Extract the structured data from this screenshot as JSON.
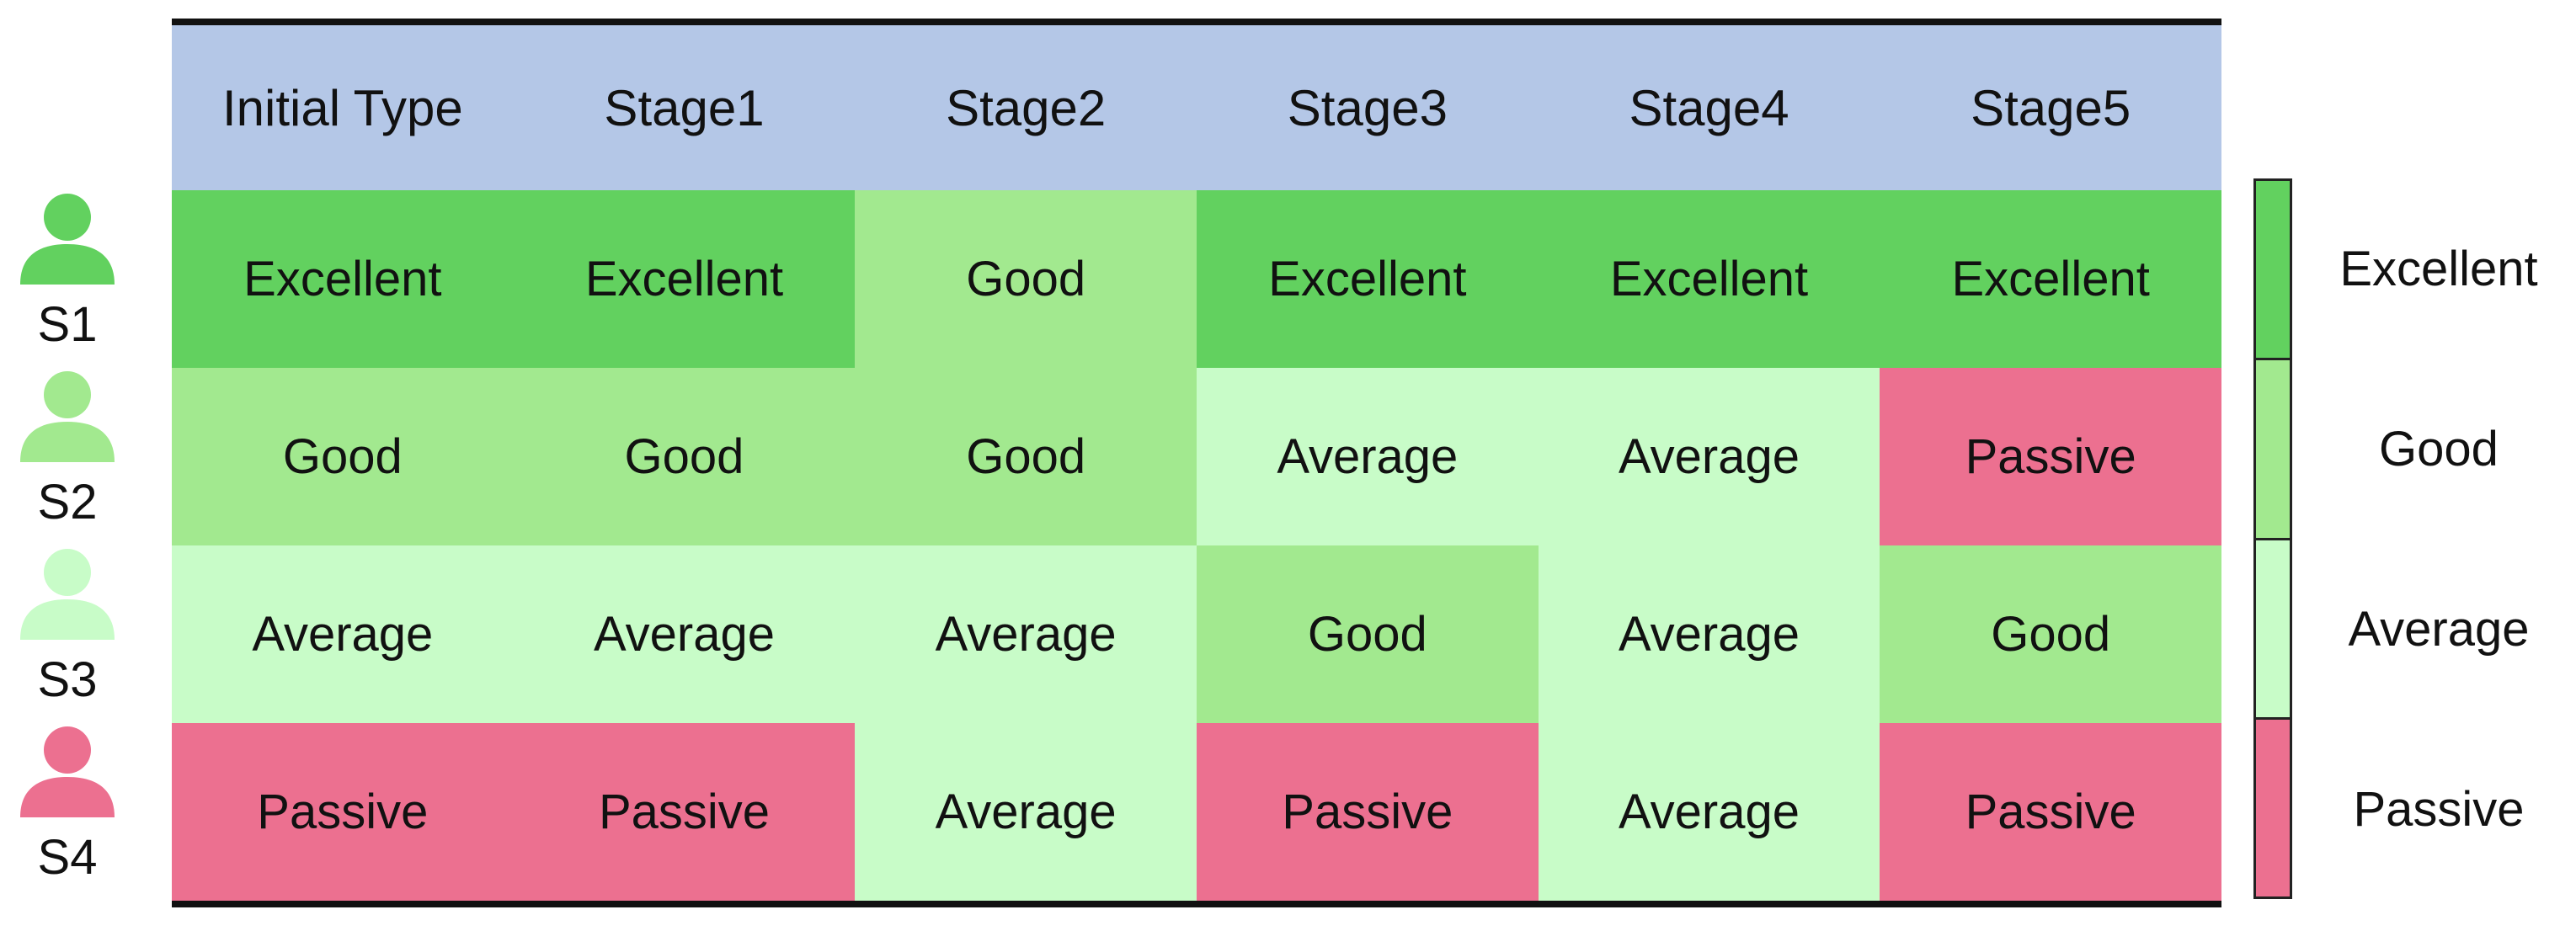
{
  "table": {
    "headers": [
      "Initial Type",
      "Stage1",
      "Stage2",
      "Stage3",
      "Stage4",
      "Stage5"
    ],
    "rows": [
      {
        "student": "S1",
        "cells": [
          "Excellent",
          "Excellent",
          "Good",
          "Excellent",
          "Excellent",
          "Excellent"
        ]
      },
      {
        "student": "S2",
        "cells": [
          "Good",
          "Good",
          "Good",
          "Average",
          "Average",
          "Passive"
        ]
      },
      {
        "student": "S3",
        "cells": [
          "Average",
          "Average",
          "Average",
          "Good",
          "Average",
          "Good"
        ]
      },
      {
        "student": "S4",
        "cells": [
          "Passive",
          "Passive",
          "Average",
          "Passive",
          "Average",
          "Passive"
        ]
      }
    ]
  },
  "legend": {
    "items": [
      {
        "label": "Excellent",
        "color": "#62d15f"
      },
      {
        "label": "Good",
        "color": "#a2e98f"
      },
      {
        "label": "Average",
        "color": "#c8fcc8"
      },
      {
        "label": "Passive",
        "color": "#ec7090"
      }
    ]
  },
  "avatar_icons": [
    {
      "icon": "user-icon",
      "color": "#62d15f"
    },
    {
      "icon": "user-icon",
      "color": "#a2e98f"
    },
    {
      "icon": "user-icon",
      "color": "#c8fcc8"
    },
    {
      "icon": "user-icon",
      "color": "#ec7090"
    }
  ],
  "colors": {
    "header_bg": "#b4c7e7",
    "rule": "#111111"
  }
}
